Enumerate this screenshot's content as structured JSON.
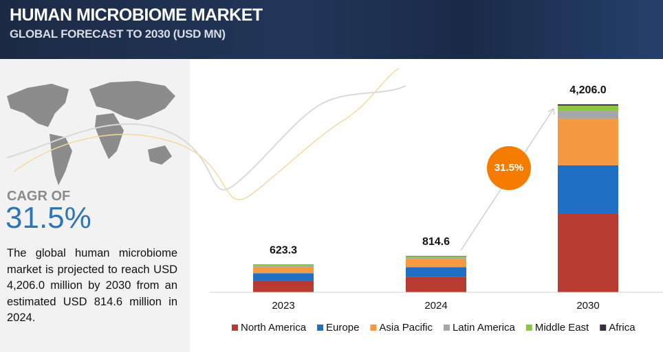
{
  "header": {
    "title": "HUMAN MICROBIOME MARKET",
    "subtitle": "GLOBAL FORECAST TO 2030 (USD MN)"
  },
  "sidebar": {
    "cagr_label": "CAGR OF",
    "cagr_value": "31.5%",
    "description": "The global human microbiome market is projected to reach USD 4,206.0 million by 2030 from an estimated USD 814.6 million in 2024."
  },
  "chart_data": {
    "type": "stacked_bar",
    "categories": [
      "2023",
      "2024",
      "2030"
    ],
    "series": [
      {
        "name": "North America",
        "color": "#b83b32",
        "values": [
          262,
          340,
          1766
        ]
      },
      {
        "name": "Europe",
        "color": "#1f6fc5",
        "values": [
          165,
          220,
          1075
        ]
      },
      {
        "name": "Asia Pacific",
        "color": "#f59a42",
        "values": [
          140,
          180,
          1044
        ]
      },
      {
        "name": "Latin America",
        "color": "#a6a6a6",
        "values": [
          30,
          40,
          169
        ]
      },
      {
        "name": "Middle East",
        "color": "#8dc63f",
        "values": [
          21,
          28,
          123
        ]
      },
      {
        "name": "Africa",
        "color": "#3b2a4a",
        "values": [
          5.3,
          6.6,
          29
        ]
      }
    ],
    "totals": [
      623.3,
      814.6,
      4206
    ],
    "total_labels": [
      "623.3",
      "814.6",
      "4,206.0"
    ],
    "annotation": "31.5%",
    "legend": "bottom"
  }
}
